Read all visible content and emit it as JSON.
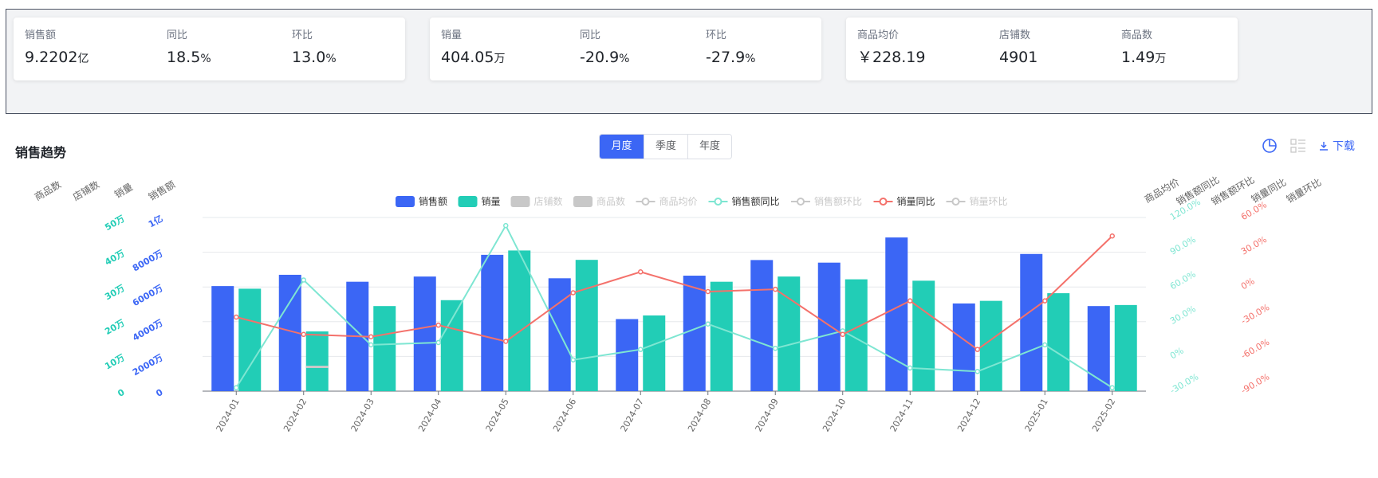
{
  "kpi_groups": [
    {
      "items": [
        {
          "label": "销售额",
          "value": "9.2202",
          "unit": "亿"
        },
        {
          "label": "同比",
          "value": "18.5",
          "unit": "%"
        },
        {
          "label": "环比",
          "value": "13.0",
          "unit": "%"
        }
      ]
    },
    {
      "items": [
        {
          "label": "销量",
          "value": "404.05",
          "unit": "万"
        },
        {
          "label": "同比",
          "value": "-20.9",
          "unit": "%"
        },
        {
          "label": "环比",
          "value": "-27.9",
          "unit": "%"
        }
      ]
    },
    {
      "items": [
        {
          "label": "商品均价",
          "value": "￥228.19",
          "unit": ""
        },
        {
          "label": "店铺数",
          "value": "4901",
          "unit": ""
        },
        {
          "label": "商品数",
          "value": "1.49",
          "unit": "万"
        }
      ]
    }
  ],
  "panel": {
    "title": "销售趋势",
    "period_tabs": [
      "月度",
      "季度",
      "年度"
    ],
    "active_tab": "月度",
    "download_label": "下载",
    "icons": [
      "pie-chart-icon",
      "table-view-icon",
      "download-icon"
    ]
  },
  "chart_data": {
    "type": "bar",
    "categories": [
      "2024-01",
      "2024-02",
      "2024-03",
      "2024-04",
      "2024-05",
      "2024-06",
      "2024-07",
      "2024-08",
      "2024-09",
      "2024-10",
      "2024-11",
      "2024-12",
      "2025-01",
      "2025-02"
    ],
    "legend": [
      {
        "name": "销售额",
        "kind": "bar",
        "color": "#3b66f5",
        "active": true
      },
      {
        "name": "销量",
        "kind": "bar",
        "color": "#22cdb6",
        "active": true
      },
      {
        "name": "店铺数",
        "kind": "bar",
        "color": "#c8c8c8",
        "active": false
      },
      {
        "name": "商品数",
        "kind": "bar",
        "color": "#c8c8c8",
        "active": false
      },
      {
        "name": "商品均价",
        "kind": "line",
        "color": "#c8c8c8",
        "active": false
      },
      {
        "name": "销售额同比",
        "kind": "line",
        "color": "#7ee6d2",
        "active": true
      },
      {
        "name": "销售额环比",
        "kind": "line",
        "color": "#c8c8c8",
        "active": false
      },
      {
        "name": "销量同比",
        "kind": "line",
        "color": "#f4716b",
        "active": true
      },
      {
        "name": "销量环比",
        "kind": "line",
        "color": "#c8c8c8",
        "active": false
      }
    ],
    "axes_left": [
      {
        "name": "商品数",
        "ticks": []
      },
      {
        "name": "店铺数",
        "ticks": []
      },
      {
        "name": "销量",
        "ticks": [
          "0",
          "10万",
          "20万",
          "30万",
          "40万",
          "50万"
        ],
        "color": "#22cdb6",
        "min": 0,
        "max": 500000
      },
      {
        "name": "销售额",
        "ticks": [
          "0",
          "2000万",
          "4000万",
          "6000万",
          "8000万",
          "1亿"
        ],
        "color": "#3b66f5",
        "min": 0,
        "max": 100000000
      }
    ],
    "axes_right": [
      {
        "name": "商品均价",
        "ticks": []
      },
      {
        "name": "销售额同比",
        "ticks": [
          "-30.0%",
          "0%",
          "30.0%",
          "60.0%",
          "90.0%",
          "120.0%"
        ],
        "color": "#7ee6d2",
        "min": -30,
        "max": 120
      },
      {
        "name": "销售额环比",
        "ticks": []
      },
      {
        "name": "销量同比",
        "ticks": [
          "-90.0%",
          "-60.0%",
          "-30.0%",
          "0%",
          "30.0%",
          "60.0%"
        ],
        "color": "#f4716b",
        "min": -90,
        "max": 60
      },
      {
        "name": "销量环比",
        "ticks": []
      }
    ],
    "series": [
      {
        "name": "销售额",
        "type": "bar",
        "axis": "销售额",
        "color": "#3b66f5",
        "values": [
          60500000,
          67000000,
          63000000,
          66000000,
          78500000,
          65000000,
          41500000,
          66500000,
          75500000,
          74000000,
          88500000,
          50500000,
          79000000,
          49000000
        ]
      },
      {
        "name": "销量",
        "type": "bar",
        "axis": "销量",
        "color": "#22cdb6",
        "values": [
          295000,
          172000,
          245000,
          262000,
          405000,
          378000,
          218000,
          315000,
          330000,
          322000,
          318000,
          260000,
          282000,
          248000
        ]
      },
      {
        "name": "销售额同比",
        "type": "line",
        "axis": "销售额同比",
        "color": "#7ee6d2",
        "values": [
          -27,
          66,
          10,
          12,
          113,
          -3,
          6,
          28,
          7,
          22,
          -10,
          -13,
          10,
          -27
        ]
      },
      {
        "name": "销量同比",
        "type": "line",
        "axis": "销量同比",
        "color": "#f4716b",
        "values": [
          -26,
          -41,
          -43,
          -33,
          -47,
          -5,
          13,
          -4,
          -2,
          -41,
          -12,
          -54,
          -12,
          44
        ]
      }
    ]
  }
}
